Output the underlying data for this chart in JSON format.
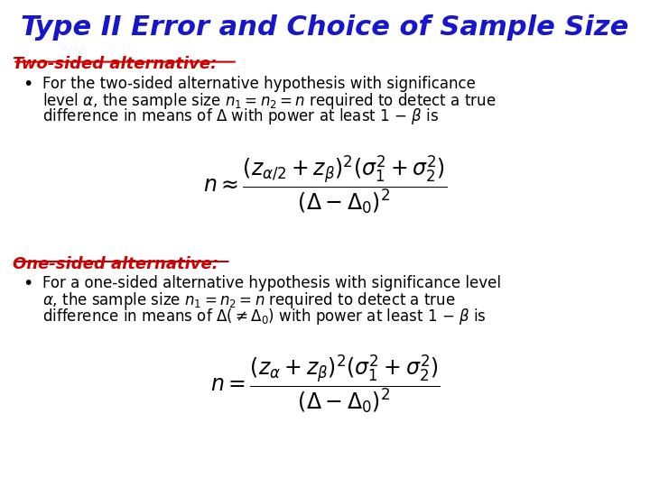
{
  "title": "Type II Error and Choice of Sample Size",
  "title_color": "#1616CC",
  "background_color": "#FFFFFF",
  "section1_label": "Two-sided alternative:",
  "section1_color": "#CC0000",
  "section2_label": "One-sided alternative:",
  "section2_color": "#CC0000",
  "figsize": [
    7.2,
    5.4
  ],
  "dpi": 100
}
